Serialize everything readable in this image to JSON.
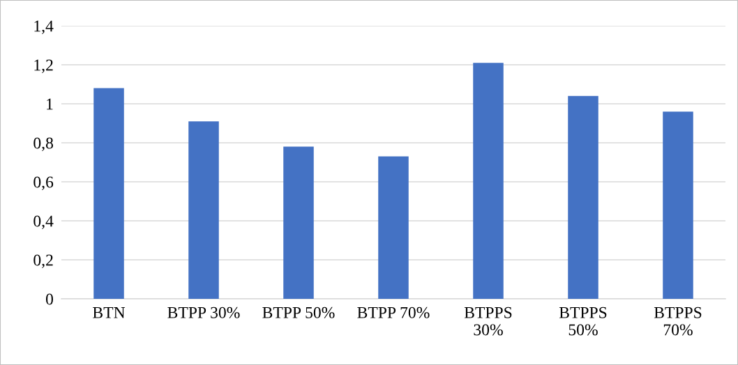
{
  "chart_data": {
    "type": "bar",
    "categories": [
      "BTN",
      "BTPP 30%",
      "BTPP 50%",
      "BTPP 70%",
      "BTPPS\n30%",
      "BTPPS\n50%",
      "BTPPS\n70%"
    ],
    "values": [
      1.08,
      0.91,
      0.78,
      0.73,
      1.21,
      1.04,
      0.96
    ],
    "color": "#4472c4",
    "ylim": [
      0,
      1.4
    ],
    "yticks": [
      {
        "value": 0,
        "label": "0"
      },
      {
        "value": 0.2,
        "label": "0,2"
      },
      {
        "value": 0.4,
        "label": "0,4"
      },
      {
        "value": 0.6,
        "label": "0,6"
      },
      {
        "value": 0.8,
        "label": "0,8"
      },
      {
        "value": 1,
        "label": "1"
      },
      {
        "value": 1.2,
        "label": "1,2"
      },
      {
        "value": 1.4,
        "label": "1,4"
      }
    ],
    "grid": "y"
  }
}
